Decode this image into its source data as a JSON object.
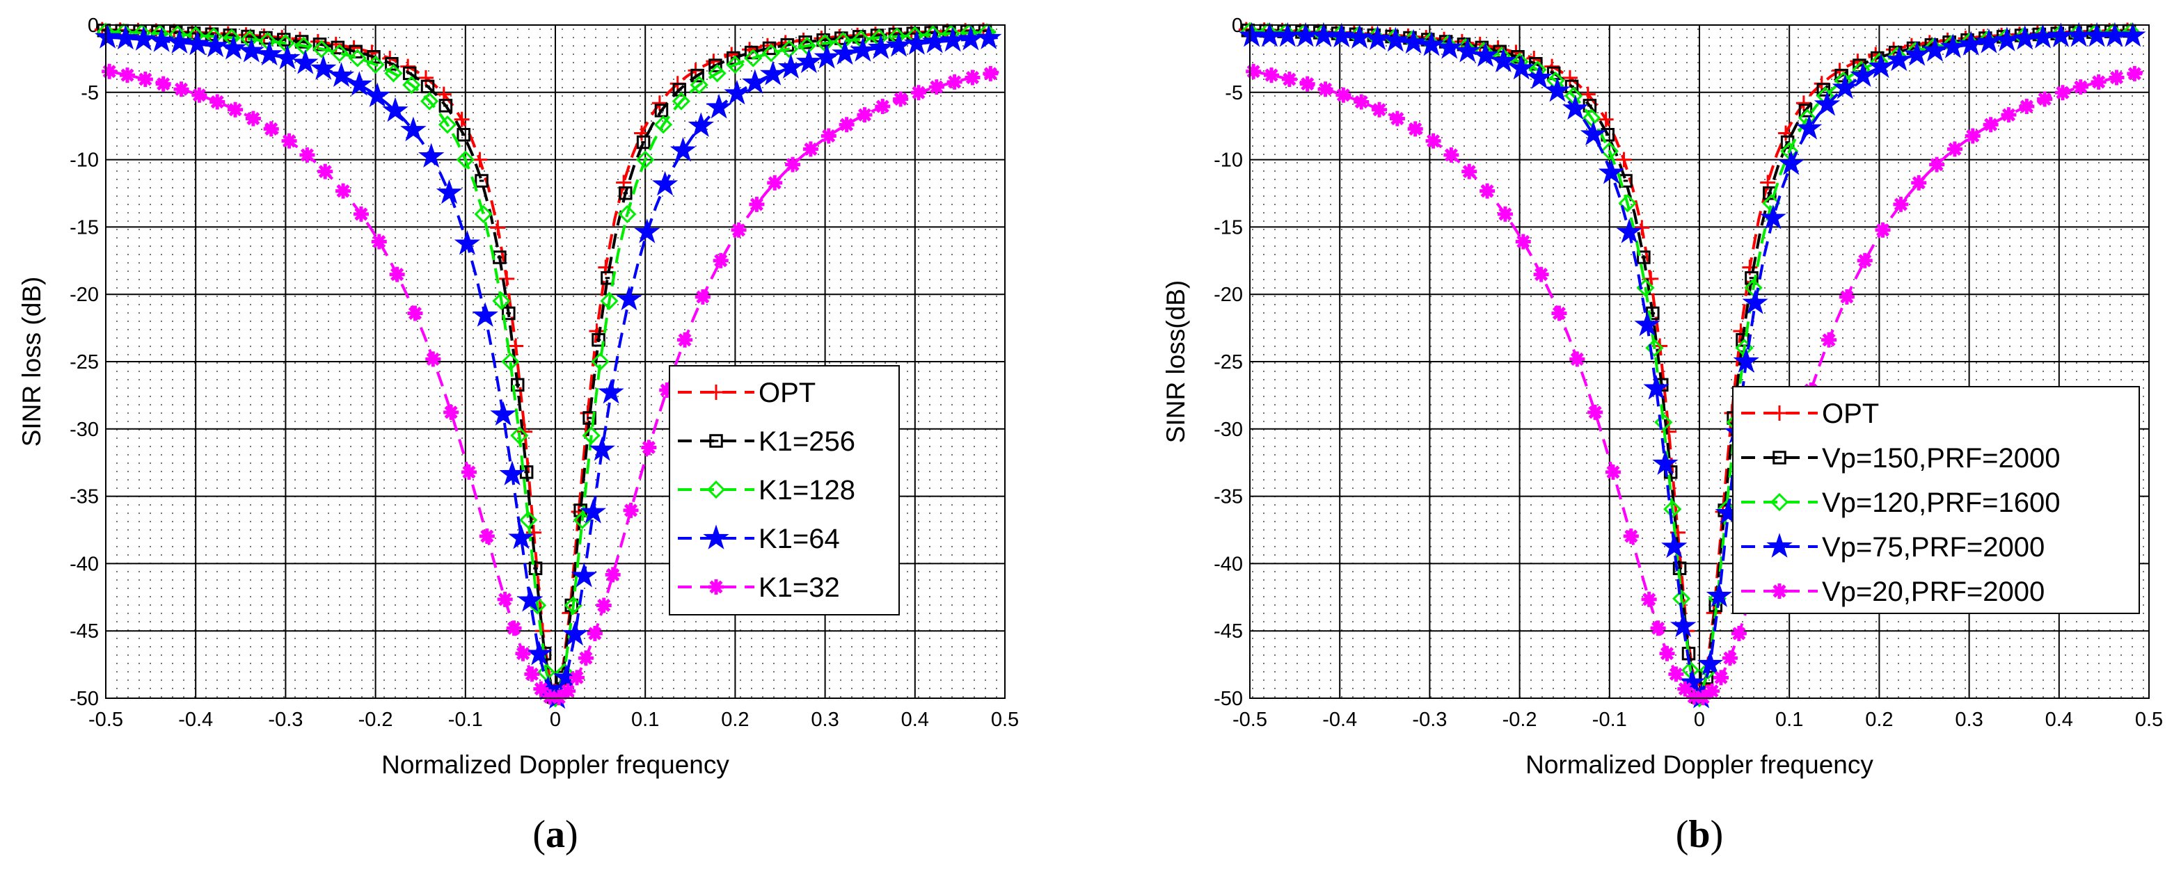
{
  "chart_data": [
    {
      "type": "line",
      "title": "",
      "caption_letter": "a",
      "xlabel": "Normalized Doppler frequency",
      "ylabel": "SINR loss (dB)",
      "xlim": [
        -0.5,
        0.5
      ],
      "ylim": [
        -50,
        0
      ],
      "xticks": [
        -0.5,
        -0.4,
        -0.3,
        -0.2,
        -0.1,
        0,
        0.1,
        0.2,
        0.3,
        0.4,
        0.5
      ],
      "xtick_labels": [
        "-0.5",
        "-0.4",
        "-0.3",
        "-0.2",
        "-0.1",
        "0",
        "0.1",
        "0.2",
        "0.3",
        "0.4",
        "0.5"
      ],
      "yticks": [
        0,
        -5,
        -10,
        -15,
        -20,
        -25,
        -30,
        -35,
        -40,
        -45,
        -50
      ],
      "ytick_labels": [
        "0",
        "-5",
        "-10",
        "-15",
        "-20",
        "-25",
        "-30",
        "-35",
        "-40",
        "-45",
        "-50"
      ],
      "grid": true,
      "legend_position": "right-center",
      "series": [
        {
          "name": "OPT",
          "color": "#ff0000",
          "marker": "plus",
          "params": {
            "floor": 0.0,
            "width": 0.042,
            "depth": 50
          }
        },
        {
          "name": "K1=256",
          "color": "#000000",
          "marker": "square",
          "params": {
            "floor": 0.0,
            "width": 0.045,
            "depth": 50
          }
        },
        {
          "name": "K1=128",
          "color": "#00ee00",
          "marker": "diamond",
          "params": {
            "floor": 0.0,
            "width": 0.05,
            "depth": 50
          }
        },
        {
          "name": "K1=64",
          "color": "#0000ff",
          "marker": "star",
          "params": {
            "floor": -0.8,
            "width": 0.068,
            "depth": 50
          }
        },
        {
          "name": "K1=32",
          "color": "#ff00ff",
          "marker": "asterisk",
          "params": {
            "floor": -1.5,
            "width": 0.135,
            "depth": 50
          }
        }
      ]
    },
    {
      "type": "line",
      "title": "",
      "caption_letter": "b",
      "xlabel": "Normalized Doppler frequency",
      "ylabel": "SINR loss(dB)",
      "xlim": [
        -0.5,
        0.5
      ],
      "ylim": [
        -50,
        0
      ],
      "xticks": [
        -0.5,
        -0.4,
        -0.3,
        -0.2,
        -0.1,
        0,
        0.1,
        0.2,
        0.3,
        0.4,
        0.5
      ],
      "xtick_labels": [
        "-0.5",
        "-0.4",
        "-0.3",
        "-0.2",
        "-0.1",
        "0",
        "0.1",
        "0.2",
        "0.3",
        "0.4",
        "0.5"
      ],
      "yticks": [
        0,
        -5,
        -10,
        -15,
        -20,
        -25,
        -30,
        -35,
        -40,
        -45,
        -50
      ],
      "ytick_labels": [
        "0",
        "-5",
        "-10",
        "-15",
        "-20",
        "-25",
        "-30",
        "-35",
        "-40",
        "-45",
        "-50"
      ],
      "grid": true,
      "legend_position": "right-lower",
      "series": [
        {
          "name": "OPT",
          "color": "#ff0000",
          "marker": "plus",
          "params": {
            "floor": 0.0,
            "width": 0.042,
            "depth": 50
          }
        },
        {
          "name": "Vp=150,PRF=2000",
          "color": "#000000",
          "marker": "square",
          "params": {
            "floor": 0.0,
            "width": 0.045,
            "depth": 50
          }
        },
        {
          "name": "Vp=120,PRF=1600",
          "color": "#00ee00",
          "marker": "diamond",
          "params": {
            "floor": 0.0,
            "width": 0.048,
            "depth": 50
          }
        },
        {
          "name": "Vp=75,PRF=2000",
          "color": "#0000ff",
          "marker": "star",
          "params": {
            "floor": -0.8,
            "width": 0.052,
            "depth": 50
          }
        },
        {
          "name": "Vp=20,PRF=2000",
          "color": "#ff00ff",
          "marker": "asterisk",
          "params": {
            "floor": -1.2,
            "width": 0.135,
            "depth": 50
          }
        }
      ]
    }
  ]
}
